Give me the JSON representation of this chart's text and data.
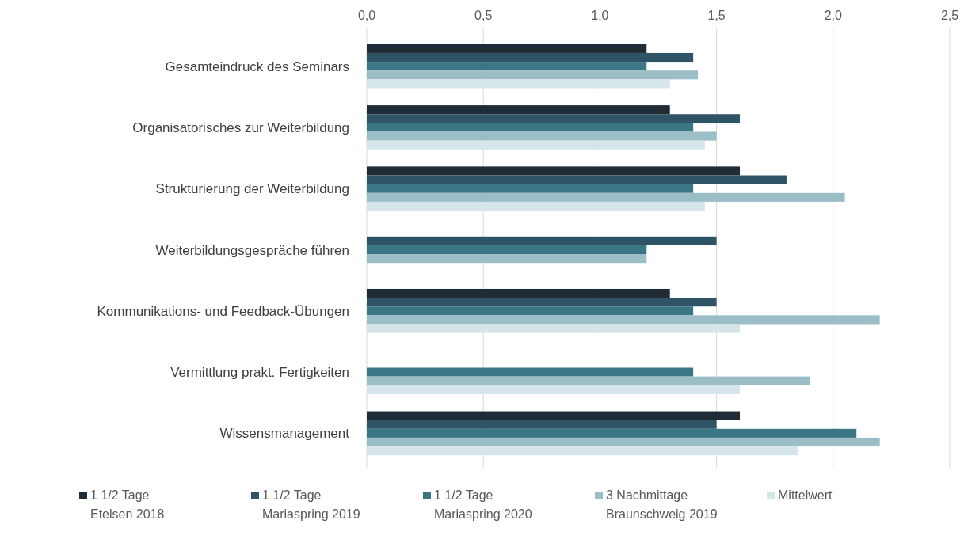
{
  "chart_data": {
    "type": "bar",
    "orientation": "horizontal",
    "categories": [
      "Gesamteindruck des Seminars",
      "Organisatorisches zur Weiterbildung",
      "Strukturierung der Weiterbildung",
      "Weiterbildungsgespräche führen",
      "Kommunikations- und Feedback-Übungen",
      "Vermittlung prakt. Fertigkeiten",
      "Wissensmanagement"
    ],
    "series": [
      {
        "name": "1 1/2 Tage\nEtelsen 2018",
        "color": "#1f2b35",
        "values": [
          1.2,
          1.3,
          1.6,
          null,
          1.3,
          null,
          1.6
        ]
      },
      {
        "name": "1 1/2 Tage\nMariaspring 2019",
        "color": "#2f5466",
        "values": [
          1.4,
          1.6,
          1.8,
          1.5,
          1.5,
          null,
          1.5
        ]
      },
      {
        "name": "1 1/2 Tage\nMariaspring 2020",
        "color": "#3a7683",
        "values": [
          1.2,
          1.4,
          1.4,
          1.2,
          1.4,
          1.4,
          2.1
        ]
      },
      {
        "name": "3 Nachmittage\nBraunschweig 2019",
        "color": "#9bbdc6",
        "values": [
          1.42,
          1.5,
          2.05,
          1.2,
          2.2,
          1.9,
          2.2
        ]
      },
      {
        "name": "Mittelwert",
        "color": "#d6e5e9",
        "values": [
          1.3,
          1.45,
          1.45,
          null,
          1.6,
          1.6,
          1.85
        ]
      }
    ],
    "xlim": [
      0,
      2.5
    ],
    "xticks": [
      {
        "value": 0,
        "label": "0,0"
      },
      {
        "value": 0.5,
        "label": "0,5"
      },
      {
        "value": 1,
        "label": "1,0"
      },
      {
        "value": 1.5,
        "label": "1,5"
      },
      {
        "value": 2,
        "label": "2,0"
      },
      {
        "value": 2.5,
        "label": "2,5"
      }
    ],
    "grid": "x",
    "legend": "bottom"
  }
}
